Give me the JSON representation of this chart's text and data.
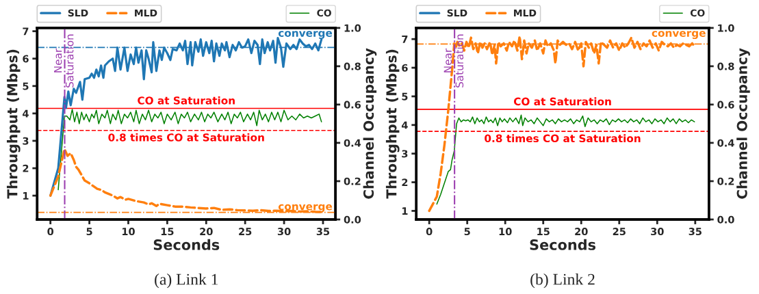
{
  "chart_data": [
    {
      "type": "line",
      "xlabel": "Seconds",
      "ylabel": "Throughput (Mbps)",
      "y2label": "Channel Occupancy",
      "annotations": [
        "(a) Link 1"
      ],
      "legend": "top",
      "grid": false,
      "xlim": [
        -1.7,
        36.6
      ],
      "xticks": [
        0,
        5,
        10,
        15,
        20,
        25,
        30,
        35
      ],
      "ylim": [
        0.13,
        7.12
      ],
      "yticks": [
        1,
        2,
        3,
        4,
        5,
        6,
        7
      ],
      "y2lim": [
        0,
        1
      ],
      "y2ticks": [
        {
          "value": 0,
          "label": "0.0"
        },
        {
          "value": 0.2,
          "label": "0.2"
        },
        {
          "value": 0.4,
          "label": "0.4"
        },
        {
          "value": 0.6,
          "label": "0.6"
        },
        {
          "value": 0.8,
          "label": "0.8"
        },
        {
          "value": 1,
          "label": "1.0"
        }
      ],
      "series": [
        {
          "name": "SLD",
          "color": "#1f77b4",
          "line_style": "solid",
          "x": [
            0,
            1,
            1.8,
            2.0,
            2.3,
            2.6,
            3.0,
            3.3,
            3.8,
            4.1,
            4.4,
            5.0,
            5.3,
            5.6,
            5.9,
            6.2,
            6.5,
            6.8,
            7.0,
            7.5,
            8.0,
            8.3,
            8.6,
            9.0,
            9.5,
            9.9,
            10.3,
            10.7,
            11.0,
            11.3,
            11.7,
            12.0,
            12.3,
            12.6,
            13.0,
            13.2,
            13.6,
            14.0,
            14.3,
            14.6,
            15.0,
            15.4,
            15.7,
            16.2,
            16.6,
            17.0,
            17.3,
            17.6,
            18.0,
            18.2,
            18.6,
            19.0,
            19.3,
            19.6,
            20.0,
            20.4,
            20.7,
            21.0,
            21.3,
            21.7,
            22.0,
            22.4,
            22.6,
            23.0,
            23.4,
            23.8,
            24.2,
            24.6,
            25.0,
            25.4,
            25.8,
            26.2,
            26.6,
            26.9,
            27.2,
            27.5,
            27.9,
            28.2,
            28.6,
            28.9,
            29.2,
            29.6,
            29.9,
            30.3,
            30.8,
            31.2,
            31.6,
            32.0,
            32.4,
            32.8,
            33.2,
            33.6,
            34.0,
            34.4,
            34.8
          ],
          "values": [
            1.0,
            2.0,
            4.6,
            4.2,
            4.8,
            4.3,
            4.9,
            4.75,
            5.15,
            4.5,
            5.25,
            5.3,
            5.45,
            5.3,
            5.6,
            5.35,
            5.75,
            5.3,
            5.75,
            5.9,
            6.0,
            5.55,
            6.4,
            5.6,
            6.4,
            5.55,
            6.15,
            5.8,
            6.4,
            5.85,
            6.3,
            5.25,
            6.3,
            6.0,
            5.5,
            6.6,
            5.55,
            6.3,
            5.95,
            6.4,
            6.2,
            5.95,
            6.35,
            6.3,
            6.55,
            6.3,
            6.65,
            5.8,
            6.6,
            5.75,
            6.6,
            6.25,
            6.7,
            6.1,
            6.6,
            6.2,
            6.65,
            5.9,
            6.55,
            6.1,
            6.55,
            6.3,
            6.6,
            6.05,
            6.5,
            6.3,
            6.6,
            6.4,
            6.45,
            6.7,
            6.2,
            6.65,
            6.5,
            5.8,
            6.7,
            6.2,
            6.6,
            6.3,
            6.65,
            5.85,
            6.75,
            6.4,
            5.7,
            6.55,
            6.35,
            6.5,
            6.35,
            6.7,
            6.55,
            6.45,
            6.5,
            6.35,
            6.55,
            6.3,
            6.7
          ]
        },
        {
          "name": "MLD",
          "color": "#ff7f0e",
          "line_style": "dashed",
          "x": [
            0,
            1,
            1.8,
            2.2,
            2.6,
            3.0,
            3.3,
            3.6,
            4.0,
            4.4,
            5.0,
            5.5,
            6.0,
            6.6,
            7.0,
            7.6,
            8.0,
            8.6,
            9.0,
            9.6,
            10.0,
            11.0,
            12.0,
            12.6,
            13.0,
            13.6,
            14.0,
            15.0,
            16.0,
            17.0,
            18.0,
            19.0,
            20.0,
            21.0,
            22.0,
            23.0,
            24.0,
            25.0,
            26.0,
            27.0,
            28.0,
            29.0,
            30.0,
            31.0,
            32.0,
            33.0,
            34.0,
            35.0
          ],
          "values": [
            1.0,
            1.7,
            2.7,
            2.45,
            2.55,
            2.3,
            2.05,
            1.95,
            1.75,
            1.55,
            1.45,
            1.35,
            1.25,
            1.2,
            1.12,
            1.05,
            1.0,
            0.9,
            0.95,
            0.85,
            0.88,
            0.8,
            0.75,
            0.68,
            0.72,
            0.62,
            0.7,
            0.65,
            0.6,
            0.6,
            0.57,
            0.55,
            0.53,
            0.55,
            0.48,
            0.5,
            0.47,
            0.46,
            0.45,
            0.47,
            0.44,
            0.45,
            0.43,
            0.44,
            0.42,
            0.43,
            0.41,
            0.4
          ]
        },
        {
          "name": "CO",
          "color": "#008000",
          "line_style": "solid",
          "axis": "y2",
          "x": [
            1.0,
            1.8,
            2.1,
            2.5,
            2.8,
            3.1,
            3.4,
            3.7,
            4.0,
            4.3,
            4.6,
            5.0,
            5.3,
            5.6,
            5.9,
            6.2,
            6.6,
            7.0,
            7.3,
            7.7,
            8.0,
            8.4,
            8.7,
            9.1,
            9.5,
            9.9,
            10.3,
            10.7,
            11.0,
            11.4,
            11.8,
            12.2,
            12.6,
            13.0,
            13.4,
            13.8,
            14.2,
            14.6,
            15.0,
            15.5,
            16.0,
            16.4,
            16.8,
            17.2,
            17.6,
            18.0,
            18.5,
            19.0,
            19.4,
            19.8,
            20.2,
            20.6,
            21.0,
            21.5,
            22.0,
            22.4,
            22.8,
            23.2,
            23.6,
            24.0,
            24.4,
            24.8,
            25.3,
            25.7,
            26.1,
            26.5,
            26.8,
            27.2,
            27.6,
            28.0,
            28.4,
            28.8,
            29.2,
            29.6,
            30.0,
            30.5,
            31.0,
            31.5,
            32.0,
            32.5,
            33.0,
            33.5,
            34.0,
            34.5,
            34.8
          ],
          "values": [
            0.155,
            0.54,
            0.54,
            0.52,
            0.575,
            0.51,
            0.56,
            0.5,
            0.56,
            0.52,
            0.55,
            0.51,
            0.55,
            0.53,
            0.57,
            0.5,
            0.55,
            0.53,
            0.57,
            0.5,
            0.55,
            0.52,
            0.57,
            0.5,
            0.55,
            0.53,
            0.56,
            0.51,
            0.57,
            0.5,
            0.55,
            0.52,
            0.57,
            0.51,
            0.55,
            0.53,
            0.56,
            0.5,
            0.55,
            0.52,
            0.56,
            0.5,
            0.55,
            0.53,
            0.56,
            0.51,
            0.55,
            0.52,
            0.56,
            0.51,
            0.55,
            0.53,
            0.56,
            0.51,
            0.55,
            0.52,
            0.56,
            0.5,
            0.55,
            0.53,
            0.56,
            0.51,
            0.55,
            0.52,
            0.56,
            0.49,
            0.57,
            0.52,
            0.55,
            0.51,
            0.56,
            0.52,
            0.56,
            0.51,
            0.57,
            0.52,
            0.54,
            0.52,
            0.55,
            0.53,
            0.54,
            0.53,
            0.54,
            0.55,
            0.51
          ]
        }
      ],
      "ref_lines": [
        {
          "axis": "y",
          "value": 6.41,
          "label": "converge",
          "color": "#1f77b4",
          "line_style": "dashdot"
        },
        {
          "axis": "y",
          "value": 0.39,
          "label": "converge",
          "color": "#ff7f0e",
          "line_style": "dashdot"
        },
        {
          "axis": "y2",
          "value": 0.58,
          "label": "CO at Saturation",
          "color": "#ff0000",
          "line_style": "solid"
        },
        {
          "axis": "y2",
          "value": 0.465,
          "label": "0.8 times CO at Saturation",
          "color": "#ff0000",
          "line_style": "dashed"
        },
        {
          "axis": "x",
          "value": 1.83,
          "label": "Near\nSaturation",
          "color": "#9c3fb0",
          "line_style": "dashdot"
        }
      ]
    },
    {
      "type": "line",
      "xlabel": "Seconds",
      "ylabel": "Throughput (Mbps)",
      "y2label": "Channel Occupancy",
      "annotations": [
        "(b) Link 2"
      ],
      "legend": "top",
      "grid": false,
      "xlim": [
        -1.7,
        36.8
      ],
      "xticks": [
        0,
        5,
        10,
        15,
        20,
        25,
        30,
        35
      ],
      "ylim": [
        0.7,
        7.39
      ],
      "yticks": [
        1,
        2,
        3,
        4,
        5,
        6,
        7
      ],
      "y2lim": [
        0,
        1
      ],
      "y2ticks": [
        {
          "value": 0,
          "label": "0.0"
        },
        {
          "value": 0.2,
          "label": "0.2"
        },
        {
          "value": 0.4,
          "label": "0.4"
        },
        {
          "value": 0.6,
          "label": "0.6"
        },
        {
          "value": 0.8,
          "label": "0.8"
        },
        {
          "value": 1,
          "label": "1.0"
        }
      ],
      "series": [
        {
          "name": "SLD",
          "color": "#1f77b4",
          "line_style": "solid",
          "values": [
            null
          ]
        },
        {
          "name": "MLD",
          "color": "#ff7f0e",
          "line_style": "dashed",
          "x": [
            0,
            1,
            1.5,
            2.0,
            2.5,
            3.0,
            3.3,
            3.5,
            3.7,
            4.0,
            4.3,
            4.6,
            4.9,
            5.2,
            5.5,
            5.8,
            6.1,
            6.4,
            6.7,
            7.0,
            7.3,
            7.6,
            8.0,
            8.3,
            8.6,
            8.8,
            9.1,
            9.4,
            9.8,
            10.2,
            10.5,
            10.9,
            11.2,
            11.6,
            11.9,
            12.2,
            12.5,
            12.8,
            13.1,
            13.5,
            13.9,
            14.2,
            14.6,
            15.0,
            15.3,
            15.6,
            16.0,
            16.4,
            16.6,
            16.9,
            17.2,
            17.6,
            18.0,
            18.4,
            18.8,
            19.2,
            19.6,
            20.0,
            20.3,
            20.6,
            21.0,
            21.3,
            21.7,
            22.0,
            22.3,
            22.6,
            23.0,
            23.4,
            23.8,
            24.2,
            24.6,
            25.0,
            25.4,
            25.8,
            26.2,
            26.6,
            27.0,
            27.4,
            27.8,
            28.2,
            28.6,
            29.0,
            29.4,
            29.8,
            30.2,
            30.6,
            31.0,
            31.4,
            31.8,
            32.2,
            32.6,
            33.0,
            33.4,
            33.8,
            34.2,
            34.6,
            34.9
          ],
          "values": [
            1.0,
            1.5,
            2.3,
            3.3,
            4.5,
            5.9,
            6.85,
            6.7,
            6.9,
            6.75,
            6.85,
            6.6,
            6.9,
            6.7,
            7.05,
            6.65,
            6.85,
            6.5,
            6.9,
            6.7,
            6.85,
            6.65,
            6.9,
            6.45,
            6.8,
            6.15,
            6.9,
            6.75,
            6.85,
            6.6,
            6.9,
            6.75,
            6.95,
            6.6,
            7.1,
            6.3,
            6.95,
            6.5,
            6.85,
            6.7,
            6.95,
            6.6,
            6.85,
            6.5,
            6.95,
            6.75,
            6.85,
            6.6,
            6.15,
            6.95,
            6.8,
            6.9,
            6.8,
            6.85,
            6.65,
            6.9,
            6.6,
            6.85,
            6.05,
            6.9,
            6.7,
            6.85,
            6.5,
            6.8,
            6.15,
            6.9,
            6.8,
            6.7,
            6.95,
            6.7,
            6.85,
            6.6,
            6.85,
            6.7,
            6.85,
            7.05,
            6.7,
            6.9,
            6.65,
            6.85,
            6.75,
            6.95,
            6.7,
            6.85,
            6.6,
            6.9,
            6.8,
            6.75,
            6.85,
            6.7,
            6.8,
            6.75,
            6.85,
            6.8,
            6.75,
            6.85,
            6.75
          ]
        },
        {
          "name": "CO",
          "color": "#008000",
          "line_style": "solid",
          "axis": "y2",
          "x": [
            1.0,
            1.5,
            2.0,
            2.5,
            2.8,
            3.0,
            3.3,
            3.6,
            3.9,
            4.2,
            4.5,
            4.8,
            5.1,
            5.4,
            5.7,
            6.0,
            6.3,
            6.6,
            6.9,
            7.2,
            7.5,
            7.8,
            8.1,
            8.4,
            8.7,
            9.0,
            9.3,
            9.6,
            9.9,
            10.3,
            10.6,
            11.0,
            11.4,
            11.8,
            12.1,
            12.3,
            12.6,
            13.0,
            13.4,
            13.8,
            14.2,
            14.6,
            15.0,
            15.4,
            15.8,
            16.2,
            16.6,
            17.0,
            17.4,
            17.8,
            18.2,
            18.6,
            19.0,
            19.4,
            19.8,
            20.2,
            20.5,
            20.9,
            21.3,
            21.7,
            22.1,
            22.5,
            22.9,
            23.3,
            23.7,
            24.1,
            24.5,
            24.9,
            25.3,
            25.7,
            26.1,
            26.5,
            26.9,
            27.3,
            27.7,
            28.1,
            28.5,
            28.9,
            29.3,
            29.7,
            30.1,
            30.5,
            30.9,
            31.3,
            31.7,
            32.1,
            32.5,
            32.9,
            33.3,
            33.7,
            34.1,
            34.5,
            34.9
          ],
          "values": [
            0.08,
            0.13,
            0.19,
            0.25,
            0.26,
            0.31,
            0.36,
            0.5,
            0.53,
            0.51,
            0.52,
            0.515,
            0.52,
            0.51,
            0.535,
            0.5,
            0.53,
            0.51,
            0.52,
            0.5,
            0.535,
            0.51,
            0.52,
            0.505,
            0.53,
            0.49,
            0.53,
            0.51,
            0.525,
            0.505,
            0.53,
            0.51,
            0.53,
            0.5,
            0.545,
            0.49,
            0.53,
            0.51,
            0.52,
            0.5,
            0.53,
            0.51,
            0.49,
            0.525,
            0.51,
            0.52,
            0.5,
            0.525,
            0.51,
            0.52,
            0.51,
            0.525,
            0.5,
            0.52,
            0.51,
            0.54,
            0.485,
            0.53,
            0.51,
            0.52,
            0.5,
            0.52,
            0.51,
            0.525,
            0.495,
            0.52,
            0.51,
            0.525,
            0.51,
            0.52,
            0.505,
            0.525,
            0.51,
            0.52,
            0.5,
            0.53,
            0.51,
            0.52,
            0.5,
            0.525,
            0.51,
            0.52,
            0.5,
            0.53,
            0.51,
            0.525,
            0.5,
            0.525,
            0.51,
            0.52,
            0.505,
            0.52,
            0.51
          ]
        }
      ],
      "ref_lines": [
        {
          "axis": "y",
          "value": 6.83,
          "label": "converge",
          "color": "#ff7f0e",
          "line_style": "dashdot"
        },
        {
          "axis": "y2",
          "value": 0.575,
          "label": "CO at Saturation",
          "color": "#ff0000",
          "line_style": "solid"
        },
        {
          "axis": "y2",
          "value": 0.46,
          "label": "0.8 times CO at Saturation",
          "color": "#ff0000",
          "line_style": "dashed"
        },
        {
          "axis": "x",
          "value": 3.33,
          "label": "Near\nSaturation",
          "color": "#9c3fb0",
          "line_style": "dashdot"
        }
      ]
    }
  ]
}
